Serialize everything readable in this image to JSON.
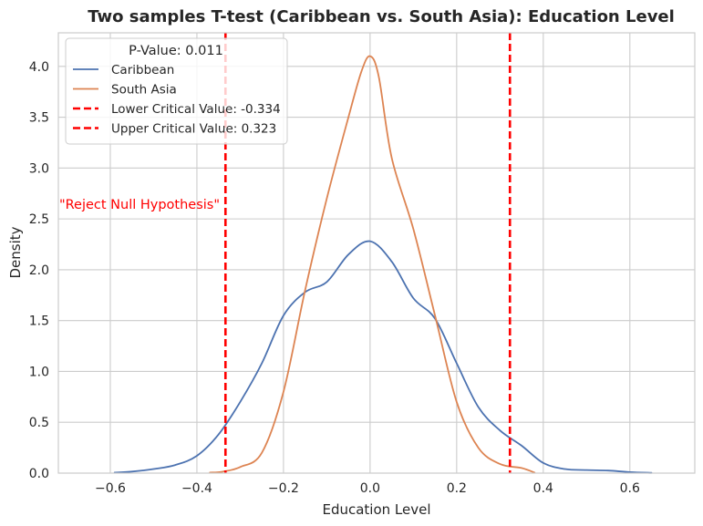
{
  "chart_data": {
    "type": "line",
    "title": "Two samples T-test (Caribbean vs. South Asia): Education Level",
    "xlabel": "Education Level",
    "ylabel": "Density",
    "xlim": [
      -0.72,
      0.75
    ],
    "ylim": [
      0,
      4.33
    ],
    "x_ticks": [
      -0.6,
      -0.4,
      -0.2,
      0.0,
      0.2,
      0.4,
      0.6
    ],
    "x_tick_labels": [
      "−0.6",
      "−0.4",
      "−0.2",
      "0.0",
      "0.2",
      "0.4",
      "0.6"
    ],
    "y_ticks": [
      0.0,
      0.5,
      1.0,
      1.5,
      2.0,
      2.5,
      3.0,
      3.5,
      4.0
    ],
    "y_tick_labels": [
      "0.0",
      "0.5",
      "1.0",
      "1.5",
      "2.0",
      "2.5",
      "3.0",
      "3.5",
      "4.0"
    ],
    "grid": true,
    "legend": {
      "title": "P-Value: 0.011",
      "placement": "top-left",
      "entries": [
        {
          "label": "Caribbean",
          "color": "#4c72b0",
          "style": "solid"
        },
        {
          "label": "South Asia",
          "color": "#dd8452",
          "style": "solid"
        },
        {
          "label": "Lower Critical Value: -0.334",
          "color": "#ff0000",
          "style": "dashed"
        },
        {
          "label": "Upper Critical Value: 0.323",
          "color": "#ff0000",
          "style": "dashed"
        }
      ]
    },
    "series": [
      {
        "name": "Caribbean",
        "color": "#4c72b0",
        "x": [
          -0.59,
          -0.55,
          -0.5,
          -0.45,
          -0.4,
          -0.35,
          -0.3,
          -0.25,
          -0.2,
          -0.15,
          -0.1,
          -0.05,
          0.0,
          0.05,
          0.1,
          0.15,
          0.2,
          0.25,
          0.3,
          0.35,
          0.4,
          0.45,
          0.5,
          0.55,
          0.6,
          0.65
        ],
        "y": [
          0.005,
          0.015,
          0.04,
          0.08,
          0.17,
          0.38,
          0.7,
          1.08,
          1.55,
          1.78,
          1.88,
          2.15,
          2.28,
          2.08,
          1.72,
          1.52,
          1.08,
          0.65,
          0.42,
          0.27,
          0.1,
          0.04,
          0.03,
          0.025,
          0.01,
          0.003
        ]
      },
      {
        "name": "South Asia",
        "color": "#dd8452",
        "x": [
          -0.37,
          -0.34,
          -0.3,
          -0.25,
          -0.2,
          -0.15,
          -0.1,
          -0.05,
          -0.02,
          0.0,
          0.02,
          0.05,
          0.1,
          0.15,
          0.2,
          0.25,
          0.3,
          0.35,
          0.38
        ],
        "y": [
          0.005,
          0.015,
          0.06,
          0.2,
          0.8,
          1.8,
          2.7,
          3.5,
          3.95,
          4.1,
          3.9,
          3.1,
          2.4,
          1.55,
          0.7,
          0.25,
          0.09,
          0.05,
          0.005
        ]
      }
    ],
    "critical_values": [
      {
        "name": "Lower Critical Value",
        "x": -0.334,
        "color": "#ff0000"
      },
      {
        "name": "Upper Critical Value",
        "x": 0.323,
        "color": "#ff0000"
      }
    ],
    "annotations": [
      {
        "text": "\"Reject Null Hypothesis\"",
        "x": -0.718,
        "y": 2.6,
        "color": "#ff0000"
      }
    ]
  }
}
